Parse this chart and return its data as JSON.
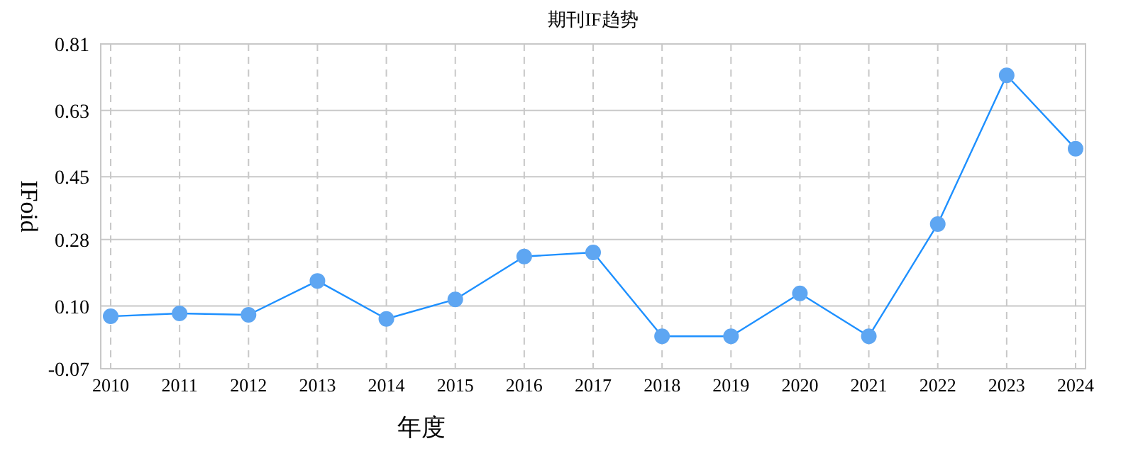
{
  "chart_data": {
    "type": "line",
    "title": "期刊IF趋势",
    "xlabel": "年度",
    "ylabel": "IFoid",
    "categories": [
      "2010",
      "2011",
      "2012",
      "2013",
      "2014",
      "2015",
      "2016",
      "2017",
      "2018",
      "2019",
      "2020",
      "2021",
      "2022",
      "2023",
      "2024"
    ],
    "series": [
      {
        "color": "#1e90ff",
        "values": [
          0.072,
          0.08,
          0.076,
          0.168,
          0.065,
          0.118,
          0.234,
          0.245,
          0.018,
          0.018,
          0.134,
          0.018,
          0.322,
          0.725,
          0.526
        ]
      }
    ],
    "ylim": [
      -0.07,
      0.81
    ],
    "yticks": [
      -0.07,
      {
        "value": 0.1,
        "label": "0.10"
      },
      0.28,
      0.45,
      0.63,
      0.81
    ],
    "grid": true,
    "marker": "circle",
    "line_style": "solid"
  }
}
